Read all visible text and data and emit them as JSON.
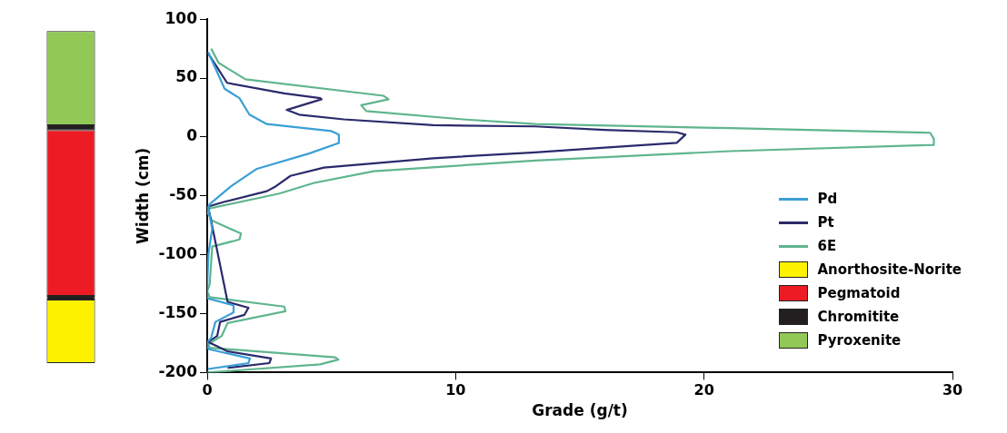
{
  "chart_data": [
    {
      "type": "bar",
      "categories": [
        null
      ],
      "ylim": [
        -200,
        100
      ],
      "tick_labels": false,
      "legend": "right",
      "series": [
        {
          "name": "Anorthosite-Norite",
          "color": "#fff200",
          "base": [
            -192
          ],
          "values": [
            54
          ]
        },
        {
          "name": "Pegmatoid",
          "color": "#ed1c24",
          "base": [
            -135
          ],
          "values": [
            141
          ]
        },
        {
          "name": "Chromitite",
          "color": "#231f20",
          "base": [
            6
          ],
          "values": [
            4
          ]
        },
        {
          "color": "#231f20",
          "base": [
            -138
          ],
          "values": [
            3
          ]
        },
        {
          "name": "Pyroxenite",
          "color": "#92c856",
          "base": [
            10
          ],
          "values": [
            80
          ]
        }
      ]
    },
    {
      "type": "line",
      "xlabel": "Grade (g/t)",
      "ylabel": "Width (cm)",
      "xlim": [
        0,
        30
      ],
      "xticks": [
        0,
        10,
        20,
        30
      ],
      "ylim": [
        -200,
        100
      ],
      "yticks": [
        -200,
        -150,
        -100,
        -50,
        0,
        50,
        100
      ],
      "grid": false,
      "legend": "bottom right",
      "marker": "none",
      "line_style": "solid",
      "series": [
        {
          "name": "Pd",
          "color": "#3a9fd6",
          "x": [
            0.04,
            0.7,
            1.3,
            1.7,
            2.4,
            5.0,
            5.3,
            5.3,
            4.1,
            2.0,
            0.95,
            0.1,
            0.04,
            0.2,
            0.05,
            0,
            0,
            1.06,
            1.06,
            0.33,
            0.15,
            0,
            0.04,
            1.72,
            1.66,
            0.04
          ],
          "values": [
            72,
            41,
            33,
            19,
            11,
            5,
            2,
            -5,
            -14,
            -27,
            -42,
            -57,
            -60,
            -78,
            -99,
            -127,
            -137,
            -143,
            -149,
            -157,
            -171,
            -174,
            -180,
            -188,
            -192,
            -197
          ]
        },
        {
          "name": "Pt",
          "color": "#2b2a6b",
          "x": [
            0.04,
            0.8,
            3.1,
            4.55,
            4.6,
            3.2,
            3.7,
            5.5,
            9.1,
            13.2,
            16.0,
            18.9,
            19.25,
            18.9,
            16.0,
            13.2,
            9.1,
            4.7,
            3.35,
            2.75,
            2.4,
            0.7,
            0.04,
            0.82,
            1.66,
            1.5,
            0.52,
            0.4,
            0.04,
            0.82,
            2.57,
            2.5,
            0.82
          ],
          "values": [
            71,
            46,
            37,
            33,
            32,
            23,
            19,
            15,
            10,
            9,
            6,
            4,
            2,
            -5,
            -9,
            -13,
            -18,
            -26,
            -33,
            -42,
            -46,
            -55,
            -59,
            -140,
            -145,
            -151,
            -157,
            -169,
            -174,
            -182,
            -188,
            -192,
            -196
          ]
        },
        {
          "name": "6E",
          "color": "#5fb58e",
          "x": [
            0.16,
            0.46,
            1.54,
            7.1,
            7.3,
            6.2,
            6.4,
            10.3,
            13.2,
            21.05,
            29.1,
            29.25,
            29.25,
            21.05,
            13.2,
            6.7,
            4.3,
            2.9,
            0,
            0,
            0.2,
            1.36,
            1.3,
            0.2,
            0.16,
            0.1,
            0,
            0.1,
            3.1,
            3.15,
            0.82,
            0.58,
            0.04,
            0.1,
            5.15,
            5.28,
            4.55,
            0
          ],
          "values": [
            75,
            63,
            49,
            35,
            32,
            27,
            22,
            15,
            11,
            7.5,
            3.6,
            -1.5,
            -6.7,
            -12,
            -20,
            -29,
            -39,
            -48,
            -61,
            -64,
            -71,
            -82,
            -87,
            -93,
            -106,
            -125,
            -131,
            -136,
            -144,
            -148,
            -158,
            -169,
            -176,
            -179,
            -187,
            -189,
            -193,
            -200
          ]
        }
      ]
    }
  ]
}
